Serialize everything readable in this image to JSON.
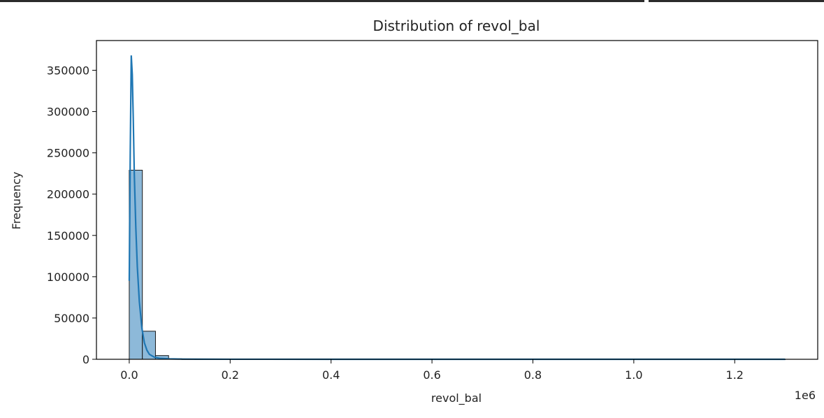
{
  "chart_data": {
    "type": "bar",
    "title": "Distribution of revol_bal",
    "xlabel": "revol_bal",
    "ylabel": "Frequency",
    "x_offset_text": "1e6",
    "xlim": [
      -0.065,
      1.3645
    ],
    "ylim": [
      0,
      386000
    ],
    "xticks": [
      0.0,
      0.2,
      0.4,
      0.6,
      0.8,
      1.0,
      1.2
    ],
    "xtick_labels": [
      "0.0",
      "0.2",
      "0.4",
      "0.6",
      "0.8",
      "1.0",
      "1.2"
    ],
    "yticks": [
      0,
      50000,
      100000,
      150000,
      200000,
      250000,
      300000,
      350000
    ],
    "ytick_labels": [
      "0",
      "50000",
      "100000",
      "150000",
      "200000",
      "250000",
      "300000",
      "350000"
    ],
    "bins": {
      "start": 0.0,
      "width": 0.026,
      "count": 50,
      "values": [
        229000,
        34000,
        4500,
        700,
        200,
        80,
        40,
        20,
        10,
        5,
        3,
        2,
        1,
        1,
        1,
        1,
        0,
        0,
        0,
        0,
        0,
        0,
        0,
        0,
        0,
        0,
        0,
        0,
        0,
        0,
        0,
        0,
        0,
        0,
        0,
        0,
        0,
        0,
        0,
        0,
        0,
        0,
        0,
        0,
        0,
        0,
        0,
        0,
        0,
        1
      ]
    },
    "kde": {
      "name": "kde",
      "x": [
        0.0,
        0.002,
        0.004,
        0.006,
        0.008,
        0.01,
        0.013,
        0.016,
        0.02,
        0.025,
        0.03,
        0.035,
        0.04,
        0.05,
        0.06,
        0.08,
        0.1,
        0.15,
        0.2,
        0.4,
        0.6,
        0.8,
        1.0,
        1.2,
        1.3
      ],
      "y": [
        95000,
        250000,
        368000,
        345000,
        290000,
        225000,
        160000,
        112000,
        70000,
        38000,
        20000,
        11000,
        6000,
        2500,
        1200,
        500,
        250,
        100,
        50,
        10,
        5,
        2,
        1,
        0,
        0
      ]
    },
    "colors": {
      "bar_fill": "#8db9d9",
      "bar_edge": "#1a1a1a",
      "kde_line": "#1f77b4",
      "axis": "#000000"
    },
    "grid": false
  }
}
